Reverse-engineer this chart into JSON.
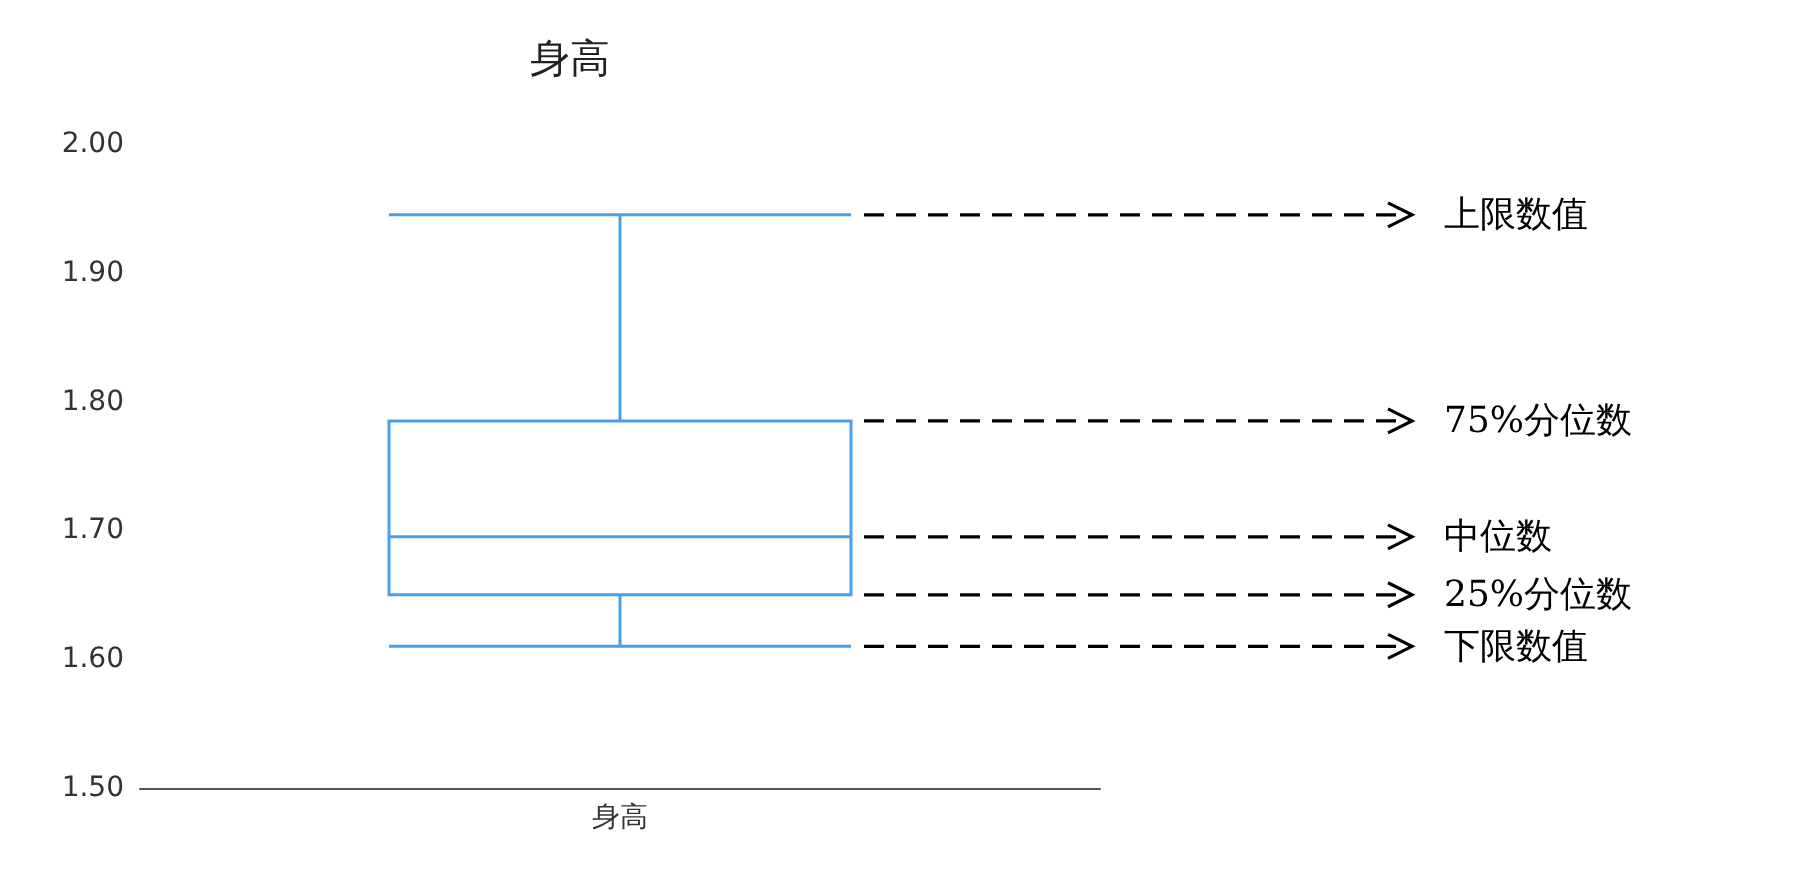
{
  "chart_data": {
    "type": "box",
    "title": "身高",
    "categories": [
      "身高"
    ],
    "boxes": [
      {
        "low": 1.61,
        "q1": 1.65,
        "median": 1.695,
        "q3": 1.785,
        "high": 1.945
      }
    ],
    "color": "#4a9fe8",
    "ylim": [
      1.5,
      2.0
    ],
    "yticks": [
      {
        "value": 1.5,
        "label": "1.50"
      },
      {
        "value": 1.6,
        "label": "1.60"
      },
      {
        "value": 1.7,
        "label": "1.70"
      },
      {
        "value": 1.8,
        "label": "1.80"
      },
      {
        "value": 1.9,
        "label": "1.90"
      },
      {
        "value": 2.0,
        "label": "2.00"
      }
    ],
    "grid": false,
    "annotations": [
      "上限数值",
      "75%分位数",
      "中位数",
      "25%分位数",
      "下限数值"
    ]
  }
}
